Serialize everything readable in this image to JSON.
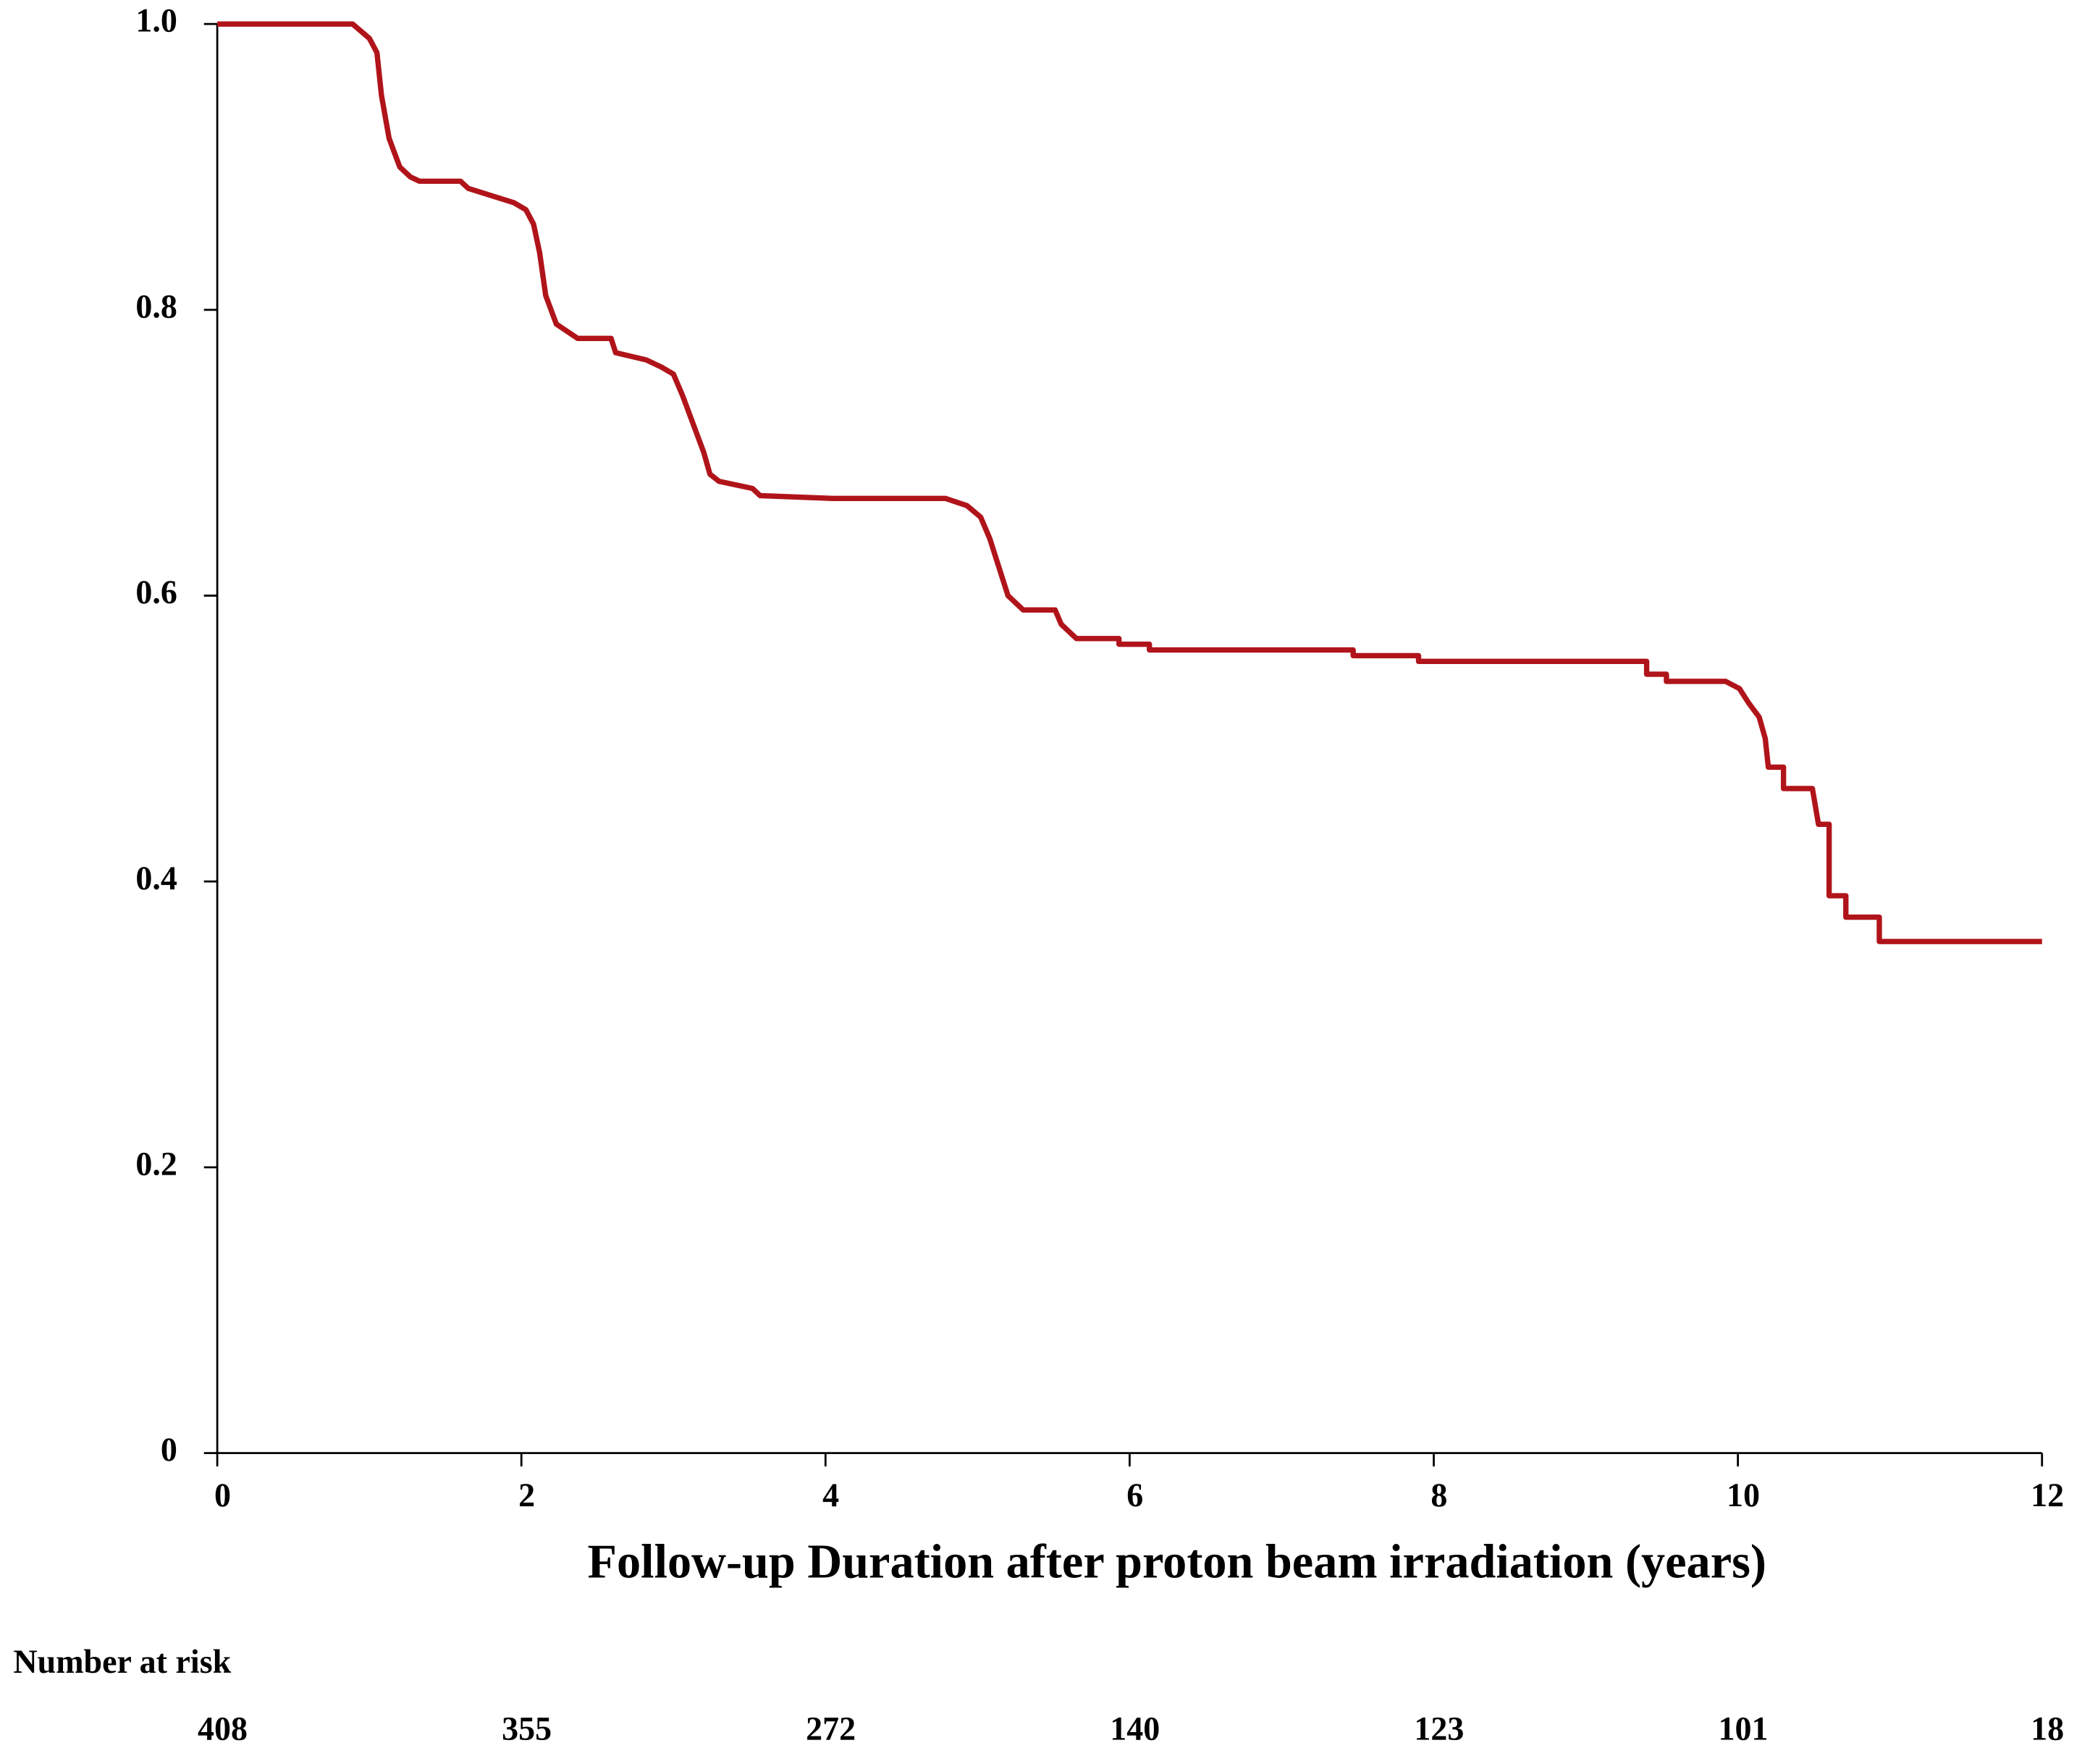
{
  "chart_data": {
    "type": "line",
    "xlabel": "Follow-up Duration after proton beam irradiation (years)",
    "x": [
      0,
      0.89,
      1.0,
      1.05,
      1.08,
      1.13,
      1.2,
      1.27,
      1.33,
      1.6,
      1.65,
      1.8,
      1.95,
      2.03,
      2.08,
      2.12,
      2.16,
      2.23,
      2.3,
      2.37,
      2.59,
      2.62,
      2.82,
      2.92,
      3.0,
      3.06,
      3.13,
      3.2,
      3.24,
      3.3,
      3.52,
      3.57,
      4.05,
      4.79,
      4.93,
      5.02,
      5.08,
      5.14,
      5.2,
      5.3,
      5.51,
      5.55,
      5.6,
      5.65,
      5.93,
      5.93,
      6.13,
      6.13,
      7.47,
      7.47,
      7.9,
      7.9,
      9.4,
      9.4,
      9.53,
      9.53,
      9.92,
      10.01,
      10.07,
      10.14,
      10.18,
      10.2,
      10.3,
      10.3,
      10.49,
      10.53,
      10.6,
      10.6,
      10.71,
      10.71,
      10.93,
      10.93,
      12
    ],
    "values": [
      1.0,
      1.0,
      0.99,
      0.98,
      0.95,
      0.92,
      0.9,
      0.893,
      0.89,
      0.89,
      0.885,
      0.88,
      0.875,
      0.87,
      0.86,
      0.84,
      0.81,
      0.79,
      0.785,
      0.78,
      0.78,
      0.77,
      0.765,
      0.76,
      0.755,
      0.74,
      0.72,
      0.7,
      0.685,
      0.68,
      0.675,
      0.67,
      0.668,
      0.668,
      0.663,
      0.655,
      0.64,
      0.62,
      0.6,
      0.59,
      0.59,
      0.58,
      0.575,
      0.57,
      0.57,
      0.566,
      0.566,
      0.562,
      0.562,
      0.558,
      0.558,
      0.554,
      0.554,
      0.545,
      0.545,
      0.54,
      0.54,
      0.535,
      0.525,
      0.515,
      0.5,
      0.48,
      0.48,
      0.465,
      0.465,
      0.44,
      0.44,
      0.39,
      0.39,
      0.375,
      0.375,
      0.358,
      0.358
    ],
    "color": "#b0141a",
    "xlim": [
      0,
      12
    ],
    "xticks": [
      0,
      2,
      4,
      6,
      8,
      10,
      12
    ],
    "ylim": [
      0,
      1
    ],
    "yticks": [
      0,
      0.2,
      0.4,
      0.6,
      0.8,
      {
        "value": 1,
        "label": "1.0"
      }
    ],
    "risk_title": "Number at risk",
    "at_risk": [
      408,
      355,
      272,
      140,
      123,
      101,
      18
    ]
  }
}
